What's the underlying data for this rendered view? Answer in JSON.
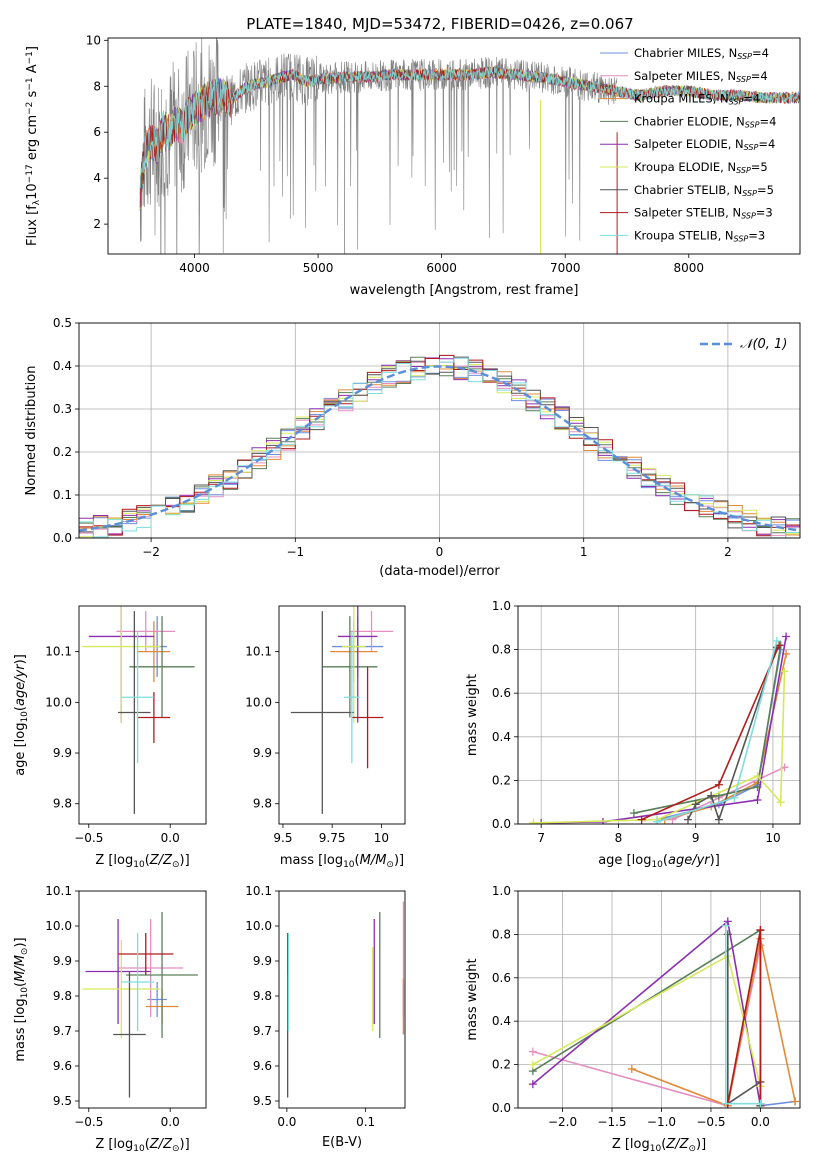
{
  "title": "PLATE=1840, MJD=53472, FIBERID=0426, z=0.067",
  "colors": {
    "Chabrier MILES": "#6d8fe0",
    "Salpeter MILES": "#e48fc0",
    "Kroupa MILES": "#e08a3a",
    "Chabrier ELODIE": "#5a7f5a",
    "Salpeter ELODIE": "#8b2fb0",
    "Kroupa ELODIE": "#d6e85c",
    "Chabrier STELIB": "#555555",
    "Salpeter STELIB": "#b01c1c",
    "Kroupa STELIB": "#7fdddd",
    "data": "#808080",
    "normal": "#5b8ed6"
  },
  "chart_data": [
    {
      "type": "line",
      "panel": "spectrum",
      "xlabel": "wavelength [Angstrom, rest frame]",
      "ylabel": "Flux [f_λ10^{-17} erg cm^{-2} s^{-1} A^{-1}]",
      "xlim": [
        3300,
        8900
      ],
      "ylim": [
        0.7,
        10.1
      ],
      "xticks": [
        4000,
        5000,
        6000,
        7000,
        8000
      ],
      "yticks": [
        2,
        4,
        6,
        8,
        10
      ],
      "legend": "top-right",
      "series": [
        {
          "name": "Chabrier MILES",
          "nssp": 4
        },
        {
          "name": "Salpeter MILES",
          "nssp": 4
        },
        {
          "name": "Kroupa MILES",
          "nssp": 4
        },
        {
          "name": "Chabrier ELODIE",
          "nssp": 4
        },
        {
          "name": "Salpeter ELODIE",
          "nssp": 4
        },
        {
          "name": "Kroupa ELODIE",
          "nssp": 5
        },
        {
          "name": "Chabrier STELIB",
          "nssp": 5
        },
        {
          "name": "Salpeter STELIB",
          "nssp": 3
        },
        {
          "name": "Kroupa STELIB",
          "nssp": 3
        }
      ],
      "spectrum": {
        "x": [
          3560,
          3600,
          3650,
          3700,
          3750,
          3800,
          3850,
          3900,
          3950,
          4000,
          4100,
          4200,
          4300,
          4400,
          4500,
          4600,
          4700,
          4800,
          4900,
          5000,
          5200,
          5400,
          5600,
          5800,
          6000,
          6200,
          6400,
          6600,
          6800,
          7000,
          7200,
          7400,
          7600,
          7800,
          8000,
          8200,
          8400,
          8600,
          8800,
          8900
        ],
        "y": [
          3.4,
          5.2,
          5.6,
          5.4,
          6.2,
          6.0,
          6.4,
          6.2,
          6.8,
          7.0,
          7.4,
          7.6,
          7.4,
          7.9,
          8.1,
          8.2,
          8.4,
          8.5,
          8.2,
          8.3,
          8.4,
          8.4,
          8.5,
          8.5,
          8.5,
          8.5,
          8.6,
          8.5,
          8.4,
          8.2,
          8.0,
          7.8,
          7.6,
          7.8,
          7.8,
          7.6,
          7.6,
          7.5,
          7.5,
          7.5
        ]
      }
    },
    {
      "type": "line",
      "panel": "residuals",
      "xlabel": "(data-model)/error",
      "ylabel": "Normed distribution",
      "xlim": [
        -2.5,
        2.5
      ],
      "ylim": [
        0,
        0.5
      ],
      "xticks": [
        -2,
        -1,
        0,
        1,
        2
      ],
      "yticks": [
        0.0,
        0.1,
        0.2,
        0.3,
        0.4,
        0.5
      ],
      "legend": "top-right",
      "normal_label": "𝒩(0, 1)"
    },
    {
      "type": "scatter",
      "panel": "age-vs-Z",
      "xlabel": "Z [log10(Z/Z⊙)]",
      "ylabel": "age  [log10(age/yr)]",
      "xlim": [
        -0.56,
        0.22
      ],
      "ylim": [
        9.76,
        10.19
      ],
      "xticks": [
        -0.5,
        0.0
      ],
      "yticks": [
        9.8,
        9.9,
        10.0,
        10.1
      ],
      "points": [
        {
          "series": "Chabrier MILES",
          "x": -0.08,
          "y": 10.11,
          "xerr": 0.06,
          "yerr": 0.06
        },
        {
          "series": "Salpeter MILES",
          "x": -0.15,
          "y": 10.14,
          "xerr": 0.18,
          "yerr": 0.04
        },
        {
          "series": "Kroupa MILES",
          "x": -0.1,
          "y": 10.1,
          "xerr": 0.1,
          "yerr": 0.06
        },
        {
          "series": "Chabrier ELODIE",
          "x": -0.05,
          "y": 10.07,
          "xerr": 0.2,
          "yerr": 0.1
        },
        {
          "series": "Salpeter ELODIE",
          "x": -0.3,
          "y": 10.13,
          "xerr": 0.2,
          "yerr": 0.17
        },
        {
          "series": "Kroupa ELODIE",
          "x": -0.3,
          "y": 10.11,
          "xerr": 0.24,
          "yerr": 0.15
        },
        {
          "series": "Chabrier STELIB",
          "x": -0.22,
          "y": 9.98,
          "xerr": 0.1,
          "yerr": 0.2
        },
        {
          "series": "Salpeter STELIB",
          "x": -0.1,
          "y": 9.97,
          "xerr": 0.1,
          "yerr": 0.05
        },
        {
          "series": "Kroupa STELIB",
          "x": -0.2,
          "y": 10.01,
          "xerr": 0.1,
          "yerr": 0.13
        }
      ]
    },
    {
      "type": "scatter",
      "panel": "age-vs-mass",
      "xlabel": "mass [log10(M/M⊙)]",
      "ylabel": "",
      "xlim": [
        9.48,
        10.12
      ],
      "ylim": [
        9.76,
        10.19
      ],
      "xticks": [
        9.5,
        9.75,
        10.0
      ],
      "yticks": [
        9.8,
        9.9,
        10.0,
        10.1
      ],
      "points": [
        {
          "series": "Chabrier MILES",
          "x": 9.88,
          "y": 10.11,
          "xerr": 0.13,
          "yerr": 0.06
        },
        {
          "series": "Salpeter MILES",
          "x": 9.95,
          "y": 10.14,
          "xerr": 0.11,
          "yerr": 0.04
        },
        {
          "series": "Kroupa MILES",
          "x": 9.86,
          "y": 10.1,
          "xerr": 0.12,
          "yerr": 0.06
        },
        {
          "series": "Chabrier ELODIE",
          "x": 9.84,
          "y": 10.07,
          "xerr": 0.14,
          "yerr": 0.1
        },
        {
          "series": "Salpeter ELODIE",
          "x": 9.88,
          "y": 10.13,
          "xerr": 0.1,
          "yerr": 0.17
        },
        {
          "series": "Kroupa ELODIE",
          "x": 9.86,
          "y": 10.11,
          "xerr": 0.06,
          "yerr": 0.15
        },
        {
          "series": "Chabrier STELIB",
          "x": 9.7,
          "y": 9.98,
          "xerr": 0.16,
          "yerr": 0.2
        },
        {
          "series": "Salpeter STELIB",
          "x": 9.93,
          "y": 9.97,
          "xerr": 0.08,
          "yerr": 0.1
        },
        {
          "series": "Kroupa STELIB",
          "x": 9.85,
          "y": 10.01,
          "xerr": 0.04,
          "yerr": 0.13
        }
      ]
    },
    {
      "type": "line",
      "panel": "weight-vs-age",
      "xlabel": "age  [log10(age/yr)]",
      "ylabel": "mass weight",
      "xlim": [
        6.7,
        10.35
      ],
      "ylim": [
        0,
        1
      ],
      "xticks": [
        7,
        8,
        9,
        10
      ],
      "yticks": [
        0.0,
        0.2,
        0.4,
        0.6,
        0.8,
        1.0
      ],
      "series": [
        {
          "name": "Chabrier MILES",
          "x": [
            8.5,
            9.3,
            9.8,
            10.1
          ],
          "y": [
            0.02,
            0.09,
            0.18,
            0.8
          ]
        },
        {
          "name": "Salpeter MILES",
          "x": [
            8.7,
            9.3,
            10.15
          ],
          "y": [
            0.02,
            0.12,
            0.26
          ]
        },
        {
          "name": "Kroupa MILES",
          "x": [
            8.6,
            9.2,
            9.8,
            10.17
          ],
          "y": [
            0.02,
            0.08,
            0.19,
            0.78
          ]
        },
        {
          "name": "Chabrier ELODIE",
          "x": [
            8.2,
            9.3,
            9.8,
            10.1
          ],
          "y": [
            0.05,
            0.13,
            0.17,
            0.82
          ]
        },
        {
          "name": "Salpeter ELODIE",
          "x": [
            7.0,
            7.8,
            9.8,
            10.17
          ],
          "y": [
            0.005,
            0.01,
            0.11,
            0.86
          ]
        },
        {
          "name": "Kroupa ELODIE",
          "x": [
            6.9,
            8.5,
            9.8,
            10.1,
            10.15
          ],
          "y": [
            0.005,
            0.02,
            0.22,
            0.1,
            0.7
          ]
        },
        {
          "name": "Chabrier STELIB",
          "x": [
            8.9,
            9.0,
            9.2,
            9.3,
            10.05
          ],
          "y": [
            0.02,
            0.09,
            0.13,
            0.02,
            0.81
          ]
        },
        {
          "name": "Salpeter STELIB",
          "x": [
            8.3,
            9.3,
            10.08
          ],
          "y": [
            0.02,
            0.18,
            0.82
          ]
        },
        {
          "name": "Kroupa STELIB",
          "x": [
            8.5,
            9.5,
            10.05
          ],
          "y": [
            0.01,
            0.12,
            0.84
          ]
        }
      ]
    },
    {
      "type": "scatter",
      "panel": "mass-vs-Z",
      "xlabel": "Z [log10(Z/Z⊙)]",
      "ylabel": "mass [log10(M/M⊙)]",
      "xlim": [
        -0.56,
        0.22
      ],
      "ylim": [
        9.48,
        10.1
      ],
      "xticks": [
        -0.5,
        0.0
      ],
      "yticks": [
        9.5,
        9.6,
        9.7,
        9.8,
        9.9,
        10.0,
        10.1
      ],
      "points": [
        {
          "series": "Chabrier MILES",
          "x": -0.08,
          "y": 9.79,
          "xerr": 0.06,
          "yerr": 0.05
        },
        {
          "series": "Salpeter MILES",
          "x": -0.12,
          "y": 9.88,
          "xerr": 0.2,
          "yerr": 0.14
        },
        {
          "series": "Kroupa MILES",
          "x": -0.05,
          "y": 9.77,
          "xerr": 0.1,
          "yerr": 0.05
        },
        {
          "series": "Chabrier ELODIE",
          "x": -0.05,
          "y": 9.86,
          "xerr": 0.22,
          "yerr": 0.18
        },
        {
          "series": "Salpeter ELODIE",
          "x": -0.32,
          "y": 9.87,
          "xerr": 0.2,
          "yerr": 0.15
        },
        {
          "series": "Kroupa ELODIE",
          "x": -0.3,
          "y": 9.82,
          "xerr": 0.24,
          "yerr": 0.14
        },
        {
          "series": "Chabrier STELIB",
          "x": -0.25,
          "y": 9.69,
          "xerr": 0.1,
          "yerr": 0.18
        },
        {
          "series": "Salpeter STELIB",
          "x": -0.15,
          "y": 9.92,
          "xerr": 0.17,
          "yerr": 0.06
        },
        {
          "series": "Kroupa STELIB",
          "x": -0.2,
          "y": 9.84,
          "xerr": 0.1,
          "yerr": 0.14
        }
      ]
    },
    {
      "type": "scatter",
      "panel": "mass-vs-EBV",
      "xlabel": "E(B-V)",
      "ylabel": "",
      "xlim": [
        -0.01,
        0.15
      ],
      "ylim": [
        9.48,
        10.1
      ],
      "xticks": [
        0.0,
        0.1
      ],
      "yticks": [
        9.5,
        9.6,
        9.7,
        9.8,
        9.9,
        10.0,
        10.1
      ],
      "points": [
        {
          "series": "Chabrier MILES",
          "x": 0.148,
          "y": 9.79,
          "yerr": 0.05
        },
        {
          "series": "Salpeter MILES",
          "x": 0.148,
          "y": 9.88,
          "yerr": 0.19
        },
        {
          "series": "Kroupa MILES",
          "x": 0.148,
          "y": 9.77,
          "yerr": 0.08
        },
        {
          "series": "Chabrier ELODIE",
          "x": 0.118,
          "y": 9.86,
          "yerr": 0.18
        },
        {
          "series": "Salpeter ELODIE",
          "x": 0.111,
          "y": 9.87,
          "yerr": 0.15
        },
        {
          "series": "Kroupa ELODIE",
          "x": 0.109,
          "y": 9.82,
          "yerr": 0.12
        },
        {
          "series": "Chabrier STELIB",
          "x": 0.001,
          "y": 9.69,
          "yerr": 0.18
        },
        {
          "series": "Salpeter STELIB",
          "x": 0.001,
          "y": 9.92,
          "yerr": 0.06
        },
        {
          "series": "Kroupa STELIB",
          "x": 0.002,
          "y": 9.84,
          "yerr": 0.14
        }
      ]
    },
    {
      "type": "line",
      "panel": "weight-vs-Z",
      "xlabel": "Z [log10(Z/Z⊙)]",
      "ylabel": "mass weight",
      "xlim": [
        -2.45,
        0.4
      ],
      "ylim": [
        0,
        1
      ],
      "xticks": [
        -2.0,
        -1.5,
        -1.0,
        -0.5,
        0.0
      ],
      "yticks": [
        0.0,
        0.2,
        0.4,
        0.6,
        0.8,
        1.0
      ],
      "series": [
        {
          "name": "Chabrier MILES",
          "x": [
            -0.33,
            0.0,
            0.0,
            0.35
          ],
          "y": [
            0.02,
            0.75,
            0.01,
            0.03
          ]
        },
        {
          "name": "Salpeter MILES",
          "x": [
            -2.3,
            -0.33,
            0.0,
            0.0
          ],
          "y": [
            0.26,
            0.01,
            0.75,
            0.01
          ]
        },
        {
          "name": "Kroupa MILES",
          "x": [
            -1.3,
            -0.33,
            0.0,
            0.35
          ],
          "y": [
            0.18,
            0.01,
            0.78,
            0.03
          ]
        },
        {
          "name": "Chabrier ELODIE",
          "x": [
            -2.3,
            0.0,
            0.0
          ],
          "y": [
            0.17,
            0.82,
            0.01
          ]
        },
        {
          "name": "Salpeter ELODIE",
          "x": [
            -2.3,
            -0.33,
            0.0
          ],
          "y": [
            0.11,
            0.86,
            0.01
          ]
        },
        {
          "name": "Kroupa ELODIE",
          "x": [
            -2.3,
            -0.33,
            0.0,
            0.0
          ],
          "y": [
            0.2,
            0.7,
            0.1,
            0.01
          ]
        },
        {
          "name": "Chabrier STELIB",
          "x": [
            -0.33,
            -0.33,
            0.0,
            0.0
          ],
          "y": [
            0.8,
            0.02,
            0.12,
            0.01
          ]
        },
        {
          "name": "Salpeter STELIB",
          "x": [
            -0.33,
            0.0,
            0.0
          ],
          "y": [
            0.02,
            0.82,
            0.02
          ]
        },
        {
          "name": "Kroupa STELIB",
          "x": [
            -0.35,
            -0.35,
            0.0
          ],
          "y": [
            0.84,
            0.02,
            0.02
          ]
        }
      ]
    }
  ]
}
